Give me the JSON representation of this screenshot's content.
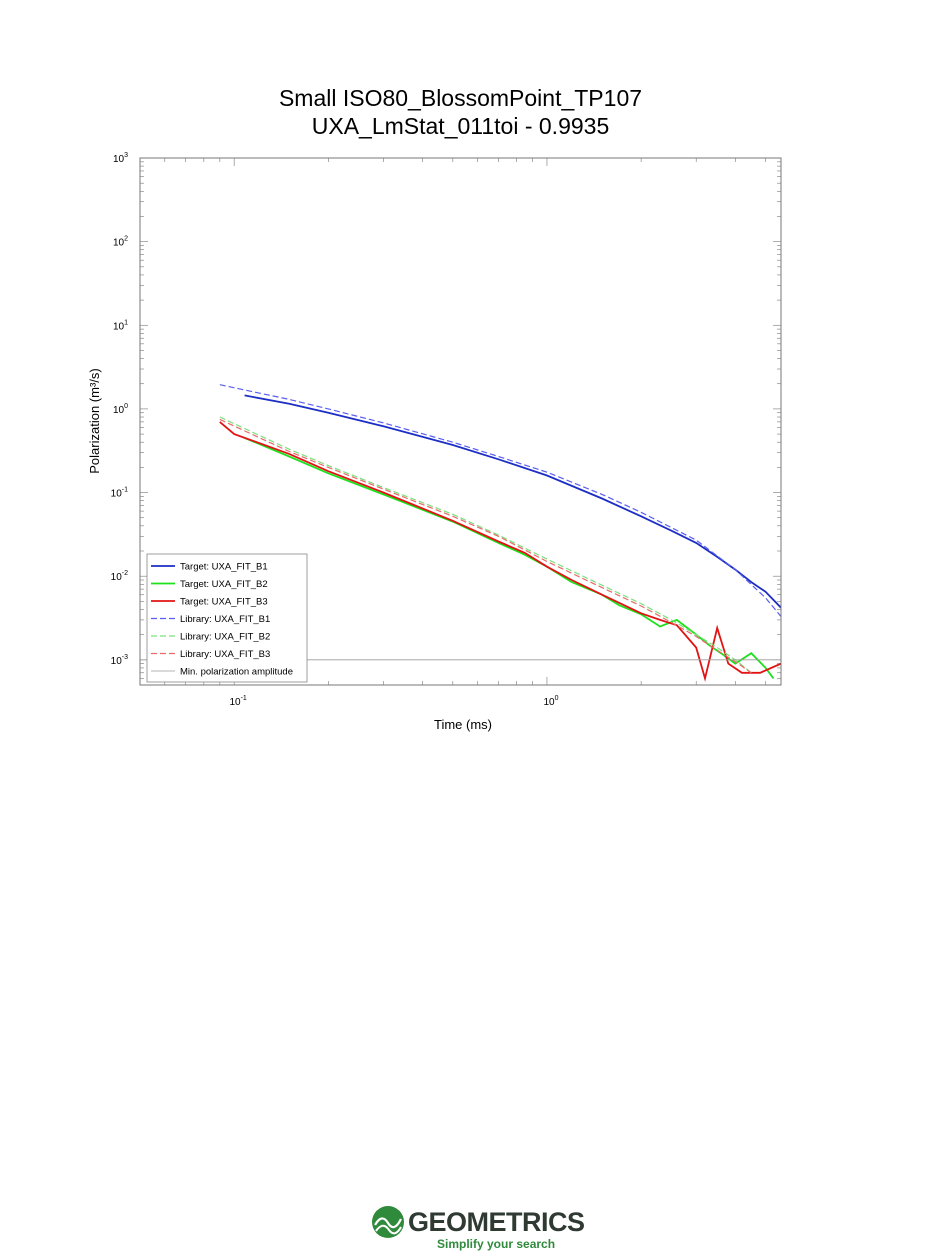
{
  "chart_data": {
    "type": "line",
    "title": "Small ISO80_BlossomPoint_TP107",
    "subtitle": "UXA_LmStat_011toi - 0.9935",
    "xlabel": "Time (ms)",
    "ylabel": "Polarization (m³/s)",
    "x_scale": "log",
    "y_scale": "log",
    "xlim": [
      0.05,
      5.6
    ],
    "ylim": [
      0.0005,
      1000
    ],
    "x_ticks": [
      {
        "value": 0.1,
        "base": "10",
        "exp": "-1"
      },
      {
        "value": 1,
        "base": "10",
        "exp": "0"
      }
    ],
    "y_ticks": [
      {
        "value": 0.001,
        "base": "10",
        "exp": "-3"
      },
      {
        "value": 0.01,
        "base": "10",
        "exp": "-2"
      },
      {
        "value": 0.1,
        "base": "10",
        "exp": "-1"
      },
      {
        "value": 1,
        "base": "10",
        "exp": "0"
      },
      {
        "value": 10,
        "base": "10",
        "exp": "1"
      },
      {
        "value": 100,
        "base": "10",
        "exp": "2"
      },
      {
        "value": 1000,
        "base": "10",
        "exp": "3"
      }
    ],
    "legend_position": "bottom-left",
    "series": [
      {
        "name": "Target: UXA_FIT_B1",
        "color": "#1c2ec4",
        "style": "solid",
        "x": [
          0.108,
          0.15,
          0.2,
          0.3,
          0.5,
          0.7,
          1.0,
          1.5,
          2.0,
          2.5,
          3.0,
          3.5,
          4.0,
          4.5,
          5.0,
          5.6
        ],
        "y": [
          1.45,
          1.15,
          0.9,
          0.62,
          0.37,
          0.25,
          0.16,
          0.085,
          0.052,
          0.035,
          0.025,
          0.017,
          0.012,
          0.0085,
          0.0065,
          0.0042
        ]
      },
      {
        "name": "Target: UXA_FIT_B2",
        "color": "#1ee01e",
        "style": "solid",
        "x": [
          0.108,
          0.15,
          0.2,
          0.3,
          0.5,
          0.7,
          0.85,
          1.0,
          1.2,
          1.5,
          1.7,
          2.0,
          2.3,
          2.6,
          3.0,
          3.3,
          3.6,
          4.0,
          4.5,
          5.0,
          5.3
        ],
        "y": [
          0.45,
          0.27,
          0.17,
          0.095,
          0.045,
          0.025,
          0.018,
          0.013,
          0.0085,
          0.006,
          0.0045,
          0.0035,
          0.0025,
          0.003,
          0.002,
          0.0015,
          0.0012,
          0.0009,
          0.0012,
          0.0008,
          0.0006
        ]
      },
      {
        "name": "Target: UXA_FIT_B3",
        "color": "#e01414",
        "style": "solid",
        "x": [
          0.09,
          0.1,
          0.15,
          0.2,
          0.3,
          0.5,
          0.7,
          0.85,
          1.0,
          1.2,
          1.5,
          1.7,
          2.0,
          2.3,
          2.6,
          3.0,
          3.2,
          3.5,
          3.8,
          4.2,
          4.8,
          5.6
        ],
        "y": [
          0.7,
          0.5,
          0.29,
          0.18,
          0.1,
          0.046,
          0.026,
          0.019,
          0.013,
          0.009,
          0.006,
          0.0048,
          0.0036,
          0.003,
          0.0026,
          0.0014,
          0.0006,
          0.0024,
          0.0009,
          0.0007,
          0.0007,
          0.0009
        ]
      },
      {
        "name": "Library: UXA_FIT_B1",
        "color": "#5a5ef0",
        "style": "dashed",
        "x": [
          0.09,
          0.15,
          0.2,
          0.3,
          0.5,
          0.7,
          1.0,
          1.5,
          2.0,
          3.0,
          4.0,
          5.0,
          5.6
        ],
        "y": [
          1.95,
          1.3,
          1.0,
          0.68,
          0.4,
          0.27,
          0.175,
          0.095,
          0.058,
          0.027,
          0.012,
          0.0055,
          0.0033
        ]
      },
      {
        "name": "Library: UXA_FIT_B2",
        "color": "#7be07b",
        "style": "dashed",
        "x": [
          0.09,
          0.15,
          0.2,
          0.3,
          0.5,
          0.7,
          1.0,
          1.5,
          2.0,
          2.5,
          3.0,
          3.5,
          4.0,
          4.5
        ],
        "y": [
          0.8,
          0.33,
          0.21,
          0.115,
          0.055,
          0.031,
          0.016,
          0.0078,
          0.0047,
          0.003,
          0.002,
          0.0014,
          0.001,
          0.0007
        ]
      },
      {
        "name": "Library: UXA_FIT_B3",
        "color": "#e86a6a",
        "style": "dashed",
        "x": [
          0.09,
          0.15,
          0.2,
          0.3,
          0.5,
          0.7,
          1.0,
          1.5,
          2.0,
          2.5,
          3.0,
          3.5,
          4.0,
          4.5
        ],
        "y": [
          0.75,
          0.31,
          0.2,
          0.11,
          0.052,
          0.03,
          0.015,
          0.0073,
          0.0044,
          0.0028,
          0.0019,
          0.0013,
          0.00095,
          0.0007
        ]
      },
      {
        "name": "Min. polarization amplitude",
        "color": "#9a9a9a",
        "style": "thin",
        "x": [
          0.05,
          5.6
        ],
        "y": [
          0.001,
          0.001
        ]
      }
    ]
  },
  "footer": {
    "logo_text": "GEOMETRICS",
    "tagline": "Simplify your search",
    "logo_color": "#2f8a3c"
  }
}
